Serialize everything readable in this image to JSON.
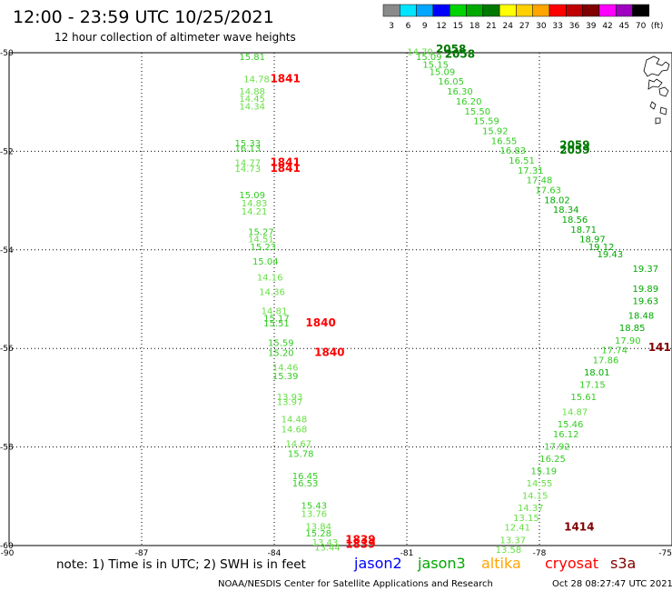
{
  "chart_data": {
    "type": "scatter",
    "title": "12:00 - 23:59 UTC 10/25/2021",
    "subtitle": "12 hour collection of altimeter wave heights",
    "xlim": [
      -90,
      -75
    ],
    "ylim": [
      -60,
      -50
    ],
    "x_ticks": [
      {
        "value": -90,
        "label": "-90"
      },
      {
        "value": -87,
        "label": "-87"
      },
      {
        "value": -84,
        "label": "-84"
      },
      {
        "value": -81,
        "label": "-81"
      },
      {
        "value": -78,
        "label": "-78"
      },
      {
        "value": -75,
        "label": "-75"
      }
    ],
    "y_ticks": [
      {
        "value": -50,
        "label": "-50"
      },
      {
        "value": -52,
        "label": "-52"
      },
      {
        "value": -54,
        "label": "-54"
      },
      {
        "value": -56,
        "label": "-56"
      },
      {
        "value": -58,
        "label": "-58"
      },
      {
        "value": -60,
        "label": "-60"
      }
    ],
    "grid": true,
    "colorbar": {
      "unit": "(ft)",
      "bins": [
        {
          "label": "3",
          "color": "#8a8a8a"
        },
        {
          "label": "6",
          "color": "#00e5ff"
        },
        {
          "label": "9",
          "color": "#00a6ff"
        },
        {
          "label": "12",
          "color": "#0000ff"
        },
        {
          "label": "15",
          "color": "#00d400"
        },
        {
          "label": "18",
          "color": "#00a800"
        },
        {
          "label": "21",
          "color": "#007800"
        },
        {
          "label": "24",
          "color": "#ffff00"
        },
        {
          "label": "27",
          "color": "#ffd000"
        },
        {
          "label": "30",
          "color": "#ffa500"
        },
        {
          "label": "33",
          "color": "#ff0000"
        },
        {
          "label": "36",
          "color": "#c00000"
        },
        {
          "label": "39",
          "color": "#800000"
        },
        {
          "label": "42",
          "color": "#ff00ff"
        },
        {
          "label": "45",
          "color": "#a000c0"
        },
        {
          "label": "70",
          "color": "#000000"
        }
      ]
    },
    "series": [
      {
        "name": "jason3",
        "color": "#00a800",
        "points": [
          {
            "x": -84.5,
            "y": -50.15,
            "value": "15.81"
          },
          {
            "x": -84.4,
            "y": -50.6,
            "value": "14.78"
          },
          {
            "x": -84.5,
            "y": -50.85,
            "value": "14.88"
          },
          {
            "x": -84.5,
            "y": -51.0,
            "value": "14.45"
          },
          {
            "x": -84.5,
            "y": -51.15,
            "value": "14.34"
          },
          {
            "x": -84.6,
            "y": -51.9,
            "value": "15.33"
          },
          {
            "x": -84.6,
            "y": -52.0,
            "value": "16.13"
          },
          {
            "x": -84.6,
            "y": -52.3,
            "value": "14.77"
          },
          {
            "x": -84.6,
            "y": -52.42,
            "value": "14.73"
          },
          {
            "x": -84.5,
            "y": -52.95,
            "value": "15.09"
          },
          {
            "x": -84.45,
            "y": -53.12,
            "value": "14.83"
          },
          {
            "x": -84.45,
            "y": -53.28,
            "value": "14.21"
          },
          {
            "x": -84.3,
            "y": -53.7,
            "value": "15.27"
          },
          {
            "x": -84.3,
            "y": -53.85,
            "value": "14.51"
          },
          {
            "x": -84.25,
            "y": -54.0,
            "value": "15.23"
          },
          {
            "x": -84.2,
            "y": -54.3,
            "value": "15.04"
          },
          {
            "x": -84.1,
            "y": -54.62,
            "value": "14.16"
          },
          {
            "x": -84.05,
            "y": -54.92,
            "value": "14.36"
          },
          {
            "x": -84.0,
            "y": -55.3,
            "value": "14.81"
          },
          {
            "x": -83.95,
            "y": -55.45,
            "value": "15.17"
          },
          {
            "x": -83.95,
            "y": -55.55,
            "value": "15.51"
          },
          {
            "x": -83.85,
            "y": -55.95,
            "value": "15.59"
          },
          {
            "x": -83.85,
            "y": -56.15,
            "value": "15.20"
          },
          {
            "x": -83.75,
            "y": -56.45,
            "value": "14.46"
          },
          {
            "x": -83.75,
            "y": -56.62,
            "value": "15.39"
          },
          {
            "x": -83.65,
            "y": -57.05,
            "value": "13.93"
          },
          {
            "x": -83.65,
            "y": -57.15,
            "value": "13.97"
          },
          {
            "x": -83.55,
            "y": -57.5,
            "value": "14.48"
          },
          {
            "x": -83.55,
            "y": -57.7,
            "value": "14.68"
          },
          {
            "x": -83.45,
            "y": -58.0,
            "value": "14.67"
          },
          {
            "x": -83.4,
            "y": -58.2,
            "value": "15.78"
          },
          {
            "x": -83.3,
            "y": -58.65,
            "value": "16.45"
          },
          {
            "x": -83.3,
            "y": -58.8,
            "value": "16.53"
          },
          {
            "x": -83.1,
            "y": -59.25,
            "value": "15.43"
          },
          {
            "x": -83.1,
            "y": -59.42,
            "value": "13.76"
          },
          {
            "x": -83.0,
            "y": -59.68,
            "value": "13.84"
          },
          {
            "x": -83.0,
            "y": -59.82,
            "value": "15.28"
          },
          {
            "x": -82.85,
            "y": -60.0,
            "value": "13.43"
          },
          {
            "x": -82.8,
            "y": -60.1,
            "value": "13.44"
          },
          {
            "x": -80.7,
            "y": -50.05,
            "value": "14.70"
          },
          {
            "x": -80.5,
            "y": -50.15,
            "value": "15.09"
          },
          {
            "x": -80.35,
            "y": -50.3,
            "value": "15.15"
          },
          {
            "x": -80.2,
            "y": -50.45,
            "value": "15.09"
          },
          {
            "x": -80.0,
            "y": -50.65,
            "value": "16.05"
          },
          {
            "x": -79.8,
            "y": -50.85,
            "value": "16.30"
          },
          {
            "x": -79.6,
            "y": -51.05,
            "value": "16.20"
          },
          {
            "x": -79.4,
            "y": -51.25,
            "value": "15.50"
          },
          {
            "x": -79.2,
            "y": -51.45,
            "value": "15.59"
          },
          {
            "x": -79.0,
            "y": -51.65,
            "value": "15.92"
          },
          {
            "x": -78.8,
            "y": -51.85,
            "value": "16.55"
          },
          {
            "x": -78.6,
            "y": -52.05,
            "value": "16.83"
          },
          {
            "x": -78.4,
            "y": -52.25,
            "value": "16.51"
          },
          {
            "x": -78.2,
            "y": -52.45,
            "value": "17.31"
          },
          {
            "x": -78.0,
            "y": -52.65,
            "value": "17.48"
          },
          {
            "x": -77.8,
            "y": -52.85,
            "value": "17.63"
          },
          {
            "x": -77.6,
            "y": -53.05,
            "value": "18.02"
          },
          {
            "x": -77.4,
            "y": -53.25,
            "value": "18.34"
          },
          {
            "x": -77.2,
            "y": -53.45,
            "value": "18.56"
          },
          {
            "x": -77.0,
            "y": -53.65,
            "value": "18.71"
          },
          {
            "x": -76.8,
            "y": -53.85,
            "value": "18.97"
          },
          {
            "x": -76.6,
            "y": -54.0,
            "value": "19.12"
          },
          {
            "x": -76.4,
            "y": -54.15,
            "value": "19.43"
          },
          {
            "x": -75.6,
            "y": -54.45,
            "value": "19.37"
          },
          {
            "x": -75.6,
            "y": -54.85,
            "value": "19.89"
          },
          {
            "x": -75.6,
            "y": -55.1,
            "value": "19.63"
          },
          {
            "x": -75.7,
            "y": -55.4,
            "value": "18.48"
          },
          {
            "x": -75.9,
            "y": -55.65,
            "value": "18.85"
          },
          {
            "x": -76.0,
            "y": -55.9,
            "value": "17.90"
          },
          {
            "x": -76.3,
            "y": -56.1,
            "value": "17.74"
          },
          {
            "x": -76.5,
            "y": -56.3,
            "value": "17.86"
          },
          {
            "x": -76.7,
            "y": -56.55,
            "value": "18.01"
          },
          {
            "x": -76.8,
            "y": -56.8,
            "value": "17.15"
          },
          {
            "x": -77.0,
            "y": -57.05,
            "value": "15.61"
          },
          {
            "x": -77.2,
            "y": -57.35,
            "value": "14.87"
          },
          {
            "x": -77.3,
            "y": -57.6,
            "value": "15.46"
          },
          {
            "x": -77.4,
            "y": -57.8,
            "value": "16.12"
          },
          {
            "x": -77.6,
            "y": -58.05,
            "value": "17.92"
          },
          {
            "x": -77.7,
            "y": -58.3,
            "value": "16.25"
          },
          {
            "x": -77.9,
            "y": -58.55,
            "value": "15.19"
          },
          {
            "x": -78.0,
            "y": -58.8,
            "value": "14.55"
          },
          {
            "x": -78.1,
            "y": -59.05,
            "value": "14.15"
          },
          {
            "x": -78.2,
            "y": -59.3,
            "value": "14.37"
          },
          {
            "x": -78.3,
            "y": -59.5,
            "value": "13.15"
          },
          {
            "x": -78.5,
            "y": -59.7,
            "value": "12.41"
          },
          {
            "x": -78.6,
            "y": -59.95,
            "value": "13.37"
          },
          {
            "x": -78.7,
            "y": -60.15,
            "value": "13.58"
          }
        ]
      }
    ],
    "time_labels": [
      {
        "x": -83.75,
        "y": -50.6,
        "label": "1841",
        "color": "#ff0000"
      },
      {
        "x": -83.75,
        "y": -52.3,
        "label": "1841",
        "color": "#ff0000"
      },
      {
        "x": -83.75,
        "y": -52.42,
        "label": "1841",
        "color": "#ff0000"
      },
      {
        "x": -82.95,
        "y": -55.55,
        "label": "1840",
        "color": "#ff0000"
      },
      {
        "x": -82.75,
        "y": -56.15,
        "label": "1840",
        "color": "#ff0000"
      },
      {
        "x": -82.05,
        "y": -59.95,
        "label": "1839",
        "color": "#ff0000"
      },
      {
        "x": -82.05,
        "y": -60.05,
        "label": "1839",
        "color": "#ff0000"
      },
      {
        "x": -80.0,
        "y": -50.0,
        "label": "2058",
        "color": "#007800"
      },
      {
        "x": -79.8,
        "y": -50.1,
        "label": "2058",
        "color": "#007800"
      },
      {
        "x": -77.2,
        "y": -51.95,
        "label": "2059",
        "color": "#007800"
      },
      {
        "x": -77.2,
        "y": -52.05,
        "label": "2059",
        "color": "#007800"
      },
      {
        "x": -77.1,
        "y": -59.7,
        "label": "1414",
        "color": "#800000"
      },
      {
        "x": -75.28,
        "y": -56.05,
        "label": "141",
        "color": "#800000"
      }
    ],
    "notes": {
      "note": "note:  1) Time is in UTC; 2) SWH is in feet",
      "legend": [
        {
          "name": "jason2",
          "color": "#0000ff"
        },
        {
          "name": "jason3",
          "color": "#00a800"
        },
        {
          "name": "altika",
          "color": "#ffa500"
        },
        {
          "name": "cryosat",
          "color": "#ff0000"
        },
        {
          "name": "s3a",
          "color": "#800000"
        }
      ],
      "credit": "NOAA/NESDIS Center for Satellite Applications and Research",
      "timestamp": "Oct 28 08:27:47 UTC 2021"
    }
  }
}
